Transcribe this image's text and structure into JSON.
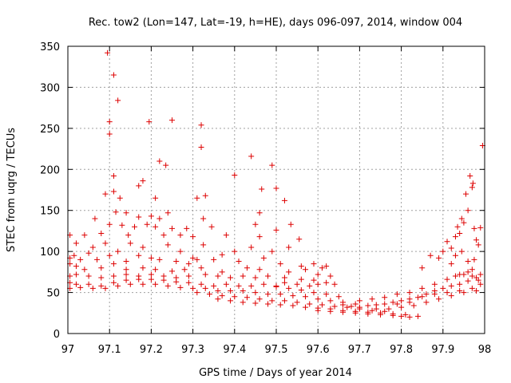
{
  "chart_data": {
    "type": "scatter",
    "title": "Rec. tow2 (Lon=147, Lat=-19, h=HE), days 096-097, 2014, window 004",
    "xlabel": "GPS time / Days of year 2014",
    "ylabel": "STEC from uqrg / TECUs",
    "xlim": [
      97,
      98
    ],
    "ylim": [
      0,
      350
    ],
    "x_ticks": [
      "97",
      "97.1",
      "97.2",
      "97.3",
      "97.4",
      "97.5",
      "97.6",
      "97.7",
      "97.8",
      "97.9",
      "98"
    ],
    "y_ticks": [
      "0",
      "50",
      "100",
      "150",
      "200",
      "250",
      "300",
      "350"
    ],
    "grid": true,
    "legend": "none",
    "marker": "+",
    "color": "#dd0000",
    "points": [
      [
        97.095,
        342
      ],
      [
        97.11,
        315
      ],
      [
        97.12,
        284
      ],
      [
        97.1,
        258
      ],
      [
        97.1,
        243
      ],
      [
        97.195,
        258
      ],
      [
        97.25,
        260
      ],
      [
        97.32,
        254
      ],
      [
        97.32,
        227
      ],
      [
        97.44,
        216
      ],
      [
        97.49,
        205
      ],
      [
        97.4,
        193
      ],
      [
        97.11,
        192
      ],
      [
        97.22,
        210
      ],
      [
        97.235,
        205
      ],
      [
        97.18,
        186
      ],
      [
        97.17,
        180
      ],
      [
        97.5,
        177
      ],
      [
        97.465,
        176
      ],
      [
        97.09,
        170
      ],
      [
        97.11,
        173
      ],
      [
        97.125,
        165
      ],
      [
        97.21,
        165
      ],
      [
        97.31,
        165
      ],
      [
        97.33,
        168
      ],
      [
        97.52,
        162
      ],
      [
        97.14,
        147
      ],
      [
        97.17,
        142
      ],
      [
        97.2,
        143
      ],
      [
        97.22,
        140
      ],
      [
        97.24,
        147
      ],
      [
        97.46,
        147
      ],
      [
        97.325,
        140
      ],
      [
        97.45,
        133
      ],
      [
        97.535,
        133
      ],
      [
        97.065,
        140
      ],
      [
        97.08,
        122
      ],
      [
        97.1,
        133
      ],
      [
        97.115,
        148
      ],
      [
        97.13,
        132
      ],
      [
        97.145,
        120
      ],
      [
        97.16,
        130
      ],
      [
        97.19,
        133
      ],
      [
        97.21,
        130
      ],
      [
        97.23,
        120
      ],
      [
        97.25,
        128
      ],
      [
        97.27,
        120
      ],
      [
        97.285,
        128
      ],
      [
        97.3,
        118
      ],
      [
        97.345,
        130
      ],
      [
        97.38,
        120
      ],
      [
        97.46,
        118
      ],
      [
        97.5,
        126
      ],
      [
        97.555,
        115
      ],
      [
        97.005,
        120
      ],
      [
        97.02,
        110
      ],
      [
        97.04,
        120
      ],
      [
        97.06,
        105
      ],
      [
        97.09,
        110
      ],
      [
        97.12,
        100
      ],
      [
        97.15,
        110
      ],
      [
        97.18,
        105
      ],
      [
        97.24,
        108
      ],
      [
        97.27,
        100
      ],
      [
        97.3,
        92
      ],
      [
        97.325,
        108
      ],
      [
        97.37,
        96
      ],
      [
        97.4,
        100
      ],
      [
        97.44,
        105
      ],
      [
        97.49,
        100
      ],
      [
        97.53,
        105
      ],
      [
        97.005,
        92
      ],
      [
        97.015,
        95
      ],
      [
        97.03,
        90
      ],
      [
        97.05,
        98
      ],
      [
        97.07,
        90
      ],
      [
        97.1,
        95
      ],
      [
        97.14,
        88
      ],
      [
        97.17,
        95
      ],
      [
        97.2,
        92
      ],
      [
        97.22,
        90
      ],
      [
        97.26,
        88
      ],
      [
        97.29,
        85
      ],
      [
        97.31,
        90
      ],
      [
        97.35,
        90
      ],
      [
        97.41,
        88
      ],
      [
        97.47,
        92
      ],
      [
        97.51,
        85
      ],
      [
        97.56,
        82
      ],
      [
        97.59,
        85
      ],
      [
        97.61,
        80
      ],
      [
        97.62,
        82
      ],
      [
        97.005,
        85
      ],
      [
        97.02,
        82
      ],
      [
        97.04,
        78
      ],
      [
        97.08,
        80
      ],
      [
        97.11,
        85
      ],
      [
        97.14,
        78
      ],
      [
        97.18,
        80
      ],
      [
        97.21,
        78
      ],
      [
        97.25,
        76
      ],
      [
        97.28,
        78
      ],
      [
        97.32,
        80
      ],
      [
        97.37,
        75
      ],
      [
        97.43,
        80
      ],
      [
        97.46,
        78
      ],
      [
        97.53,
        75
      ],
      [
        97.57,
        78
      ],
      [
        97.6,
        72
      ],
      [
        97.63,
        70
      ],
      [
        97.005,
        70
      ],
      [
        97.02,
        72
      ],
      [
        97.05,
        70
      ],
      [
        97.08,
        68
      ],
      [
        97.11,
        70
      ],
      [
        97.14,
        72
      ],
      [
        97.17,
        70
      ],
      [
        97.2,
        72
      ],
      [
        97.23,
        70
      ],
      [
        97.26,
        68
      ],
      [
        97.29,
        70
      ],
      [
        97.33,
        72
      ],
      [
        97.36,
        70
      ],
      [
        97.39,
        68
      ],
      [
        97.42,
        70
      ],
      [
        97.45,
        68
      ],
      [
        97.48,
        70
      ],
      [
        97.52,
        68
      ],
      [
        97.56,
        66
      ],
      [
        97.59,
        65
      ],
      [
        97.62,
        62
      ],
      [
        97.64,
        60
      ],
      [
        97.005,
        62
      ],
      [
        97.02,
        60
      ],
      [
        97.05,
        60
      ],
      [
        97.08,
        58
      ],
      [
        97.11,
        62
      ],
      [
        97.14,
        65
      ],
      [
        97.17,
        66
      ],
      [
        97.2,
        66
      ],
      [
        97.23,
        65
      ],
      [
        97.26,
        63
      ],
      [
        97.29,
        62
      ],
      [
        97.32,
        60
      ],
      [
        97.35,
        58
      ],
      [
        97.38,
        60
      ],
      [
        97.41,
        58
      ],
      [
        97.44,
        58
      ],
      [
        97.47,
        60
      ],
      [
        97.5,
        57
      ],
      [
        97.53,
        55
      ],
      [
        97.56,
        53
      ],
      [
        97.59,
        50
      ],
      [
        97.62,
        48
      ],
      [
        97.65,
        45
      ],
      [
        97.005,
        55
      ],
      [
        97.03,
        56
      ],
      [
        97.06,
        55
      ],
      [
        97.09,
        55
      ],
      [
        97.12,
        58
      ],
      [
        97.15,
        60
      ],
      [
        97.18,
        60
      ],
      [
        97.21,
        60
      ],
      [
        97.24,
        58
      ],
      [
        97.27,
        56
      ],
      [
        97.3,
        55
      ],
      [
        97.33,
        55
      ],
      [
        97.36,
        52
      ],
      [
        97.39,
        52
      ],
      [
        97.42,
        52
      ],
      [
        97.45,
        50
      ],
      [
        97.48,
        48
      ],
      [
        97.51,
        48
      ],
      [
        97.54,
        46
      ],
      [
        97.57,
        45
      ],
      [
        97.6,
        42
      ],
      [
        97.63,
        40
      ],
      [
        97.66,
        38
      ],
      [
        97.69,
        36
      ],
      [
        97.31,
        50
      ],
      [
        97.34,
        48
      ],
      [
        97.37,
        46
      ],
      [
        97.4,
        45
      ],
      [
        97.43,
        44
      ],
      [
        97.46,
        42
      ],
      [
        97.49,
        40
      ],
      [
        97.52,
        40
      ],
      [
        97.55,
        38
      ],
      [
        97.58,
        36
      ],
      [
        97.61,
        35
      ],
      [
        97.64,
        33
      ],
      [
        97.67,
        32
      ],
      [
        97.7,
        30
      ],
      [
        97.73,
        28
      ],
      [
        97.76,
        27
      ],
      [
        97.36,
        42
      ],
      [
        97.39,
        40
      ],
      [
        97.42,
        38
      ],
      [
        97.45,
        37
      ],
      [
        97.48,
        36
      ],
      [
        97.51,
        35
      ],
      [
        97.54,
        34
      ],
      [
        97.57,
        32
      ],
      [
        97.6,
        31
      ],
      [
        97.63,
        30
      ],
      [
        97.66,
        28
      ],
      [
        97.69,
        27
      ],
      [
        97.72,
        26
      ],
      [
        97.75,
        25
      ],
      [
        97.78,
        24
      ],
      [
        97.81,
        23
      ],
      [
        97.6,
        28
      ],
      [
        97.63,
        27
      ],
      [
        97.66,
        26
      ],
      [
        97.69,
        25
      ],
      [
        97.72,
        24
      ],
      [
        97.75,
        23
      ],
      [
        97.78,
        22
      ],
      [
        97.8,
        21
      ],
      [
        97.82,
        20
      ],
      [
        97.84,
        21
      ],
      [
        97.66,
        35
      ],
      [
        97.68,
        33
      ],
      [
        97.7,
        32
      ],
      [
        97.72,
        34
      ],
      [
        97.74,
        35
      ],
      [
        97.76,
        36
      ],
      [
        97.78,
        38
      ],
      [
        97.8,
        40
      ],
      [
        97.82,
        42
      ],
      [
        97.84,
        44
      ],
      [
        97.86,
        48
      ],
      [
        97.88,
        52
      ],
      [
        97.9,
        55
      ],
      [
        97.92,
        58
      ],
      [
        97.94,
        60
      ],
      [
        97.96,
        64
      ],
      [
        97.98,
        68
      ],
      [
        97.7,
        40
      ],
      [
        97.73,
        42
      ],
      [
        97.76,
        44
      ],
      [
        97.79,
        48
      ],
      [
        97.82,
        50
      ],
      [
        97.85,
        55
      ],
      [
        97.88,
        60
      ],
      [
        97.91,
        66
      ],
      [
        97.94,
        72
      ],
      [
        97.97,
        78
      ],
      [
        97.74,
        30
      ],
      [
        97.77,
        30
      ],
      [
        97.8,
        32
      ],
      [
        97.83,
        34
      ],
      [
        97.86,
        38
      ],
      [
        97.89,
        42
      ],
      [
        97.92,
        46
      ],
      [
        97.95,
        50
      ],
      [
        97.98,
        52
      ],
      [
        97.79,
        36
      ],
      [
        97.82,
        38
      ],
      [
        97.85,
        45
      ],
      [
        97.88,
        48
      ],
      [
        97.91,
        50
      ],
      [
        97.94,
        52
      ],
      [
        97.97,
        55
      ],
      [
        97.85,
        80
      ],
      [
        97.87,
        95
      ],
      [
        97.89,
        92
      ],
      [
        97.9,
        100
      ],
      [
        97.91,
        112
      ],
      [
        97.92,
        104
      ],
      [
        97.93,
        118
      ],
      [
        97.935,
        130
      ],
      [
        97.94,
        122
      ],
      [
        97.945,
        140
      ],
      [
        97.95,
        135
      ],
      [
        97.955,
        170
      ],
      [
        97.96,
        150
      ],
      [
        97.965,
        192
      ],
      [
        97.97,
        178
      ],
      [
        97.972,
        183
      ],
      [
        97.975,
        128
      ],
      [
        97.98,
        114
      ],
      [
        97.985,
        108
      ],
      [
        97.99,
        129
      ],
      [
        97.995,
        229
      ],
      [
        97.92,
        85
      ],
      [
        97.93,
        95
      ],
      [
        97.945,
        100
      ],
      [
        97.96,
        88
      ],
      [
        97.975,
        90
      ],
      [
        97.99,
        72
      ],
      [
        97.93,
        70
      ],
      [
        97.95,
        72
      ],
      [
        97.97,
        70
      ],
      [
        97.985,
        65
      ],
      [
        97.96,
        75
      ],
      [
        97.99,
        60
      ],
      [
        97.6,
        60
      ],
      [
        97.58,
        58
      ],
      [
        97.55,
        60
      ],
      [
        97.52,
        62
      ],
      [
        97.5,
        58
      ]
    ]
  }
}
